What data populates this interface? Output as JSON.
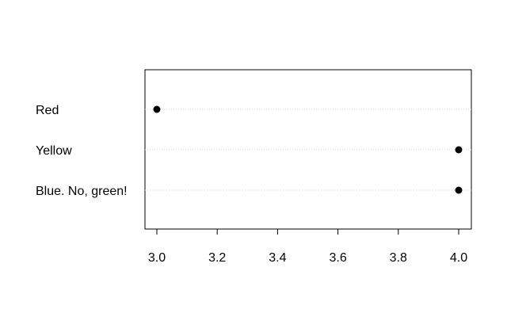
{
  "chart_data": {
    "type": "dotchart",
    "title": "",
    "xlabel": "",
    "ylabel": "",
    "categories": [
      "Red",
      "Yellow",
      "Blue. No, green!"
    ],
    "values": [
      3.0,
      4.0,
      4.0
    ],
    "xlim": [
      3.0,
      4.0
    ],
    "xticks": [
      "3.0",
      "3.2",
      "3.4",
      "3.6",
      "3.8",
      "4.0"
    ],
    "grid": "horizontal dotted guide lines per category",
    "point_color": "#000000",
    "guide_color": "#d3d3d3",
    "axis_color": "#000000"
  }
}
